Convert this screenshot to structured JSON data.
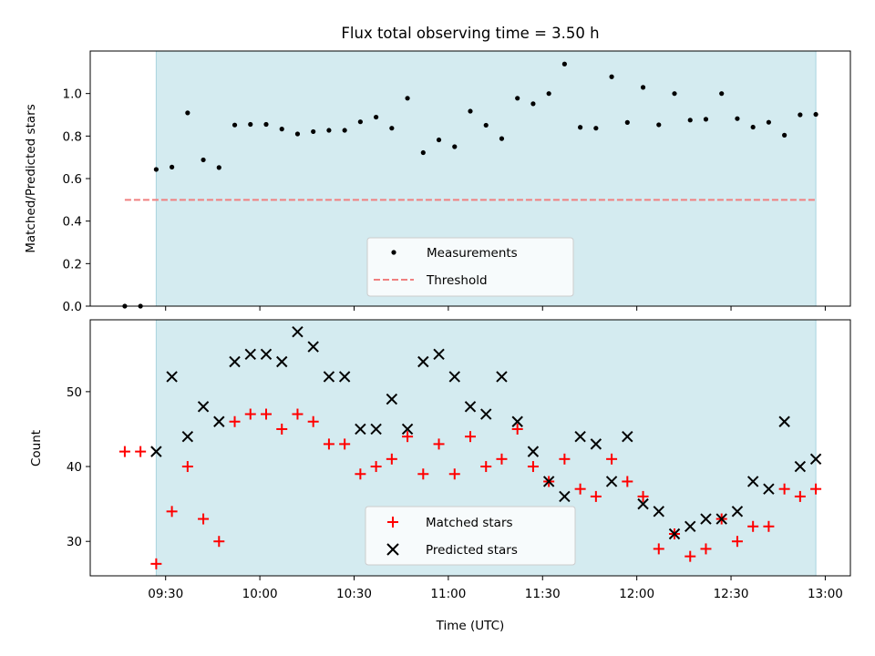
{
  "chart_data": [
    {
      "type": "scatter",
      "title": "Flux total observing time = 3.50 h",
      "ylabel": "Matched/Predicted stars",
      "xlabel": "",
      "xlim": [
        "09:06",
        "13:08"
      ],
      "ylim": [
        0,
        1.2
      ],
      "yticks": [
        0.0,
        0.2,
        0.4,
        0.6,
        0.8,
        1.0
      ],
      "ytick_labels": [
        "0.0",
        "0.2",
        "0.4",
        "0.6",
        "0.8",
        "1.0"
      ],
      "shaded_span": [
        "09:27",
        "12:57"
      ],
      "shade_color": "#d4ebf0",
      "threshold": {
        "value": 0.5,
        "x": [
          "09:17",
          "12:57"
        ],
        "color": "#f08080"
      },
      "legend": {
        "placement": "lower-center",
        "entries": [
          "Measurements",
          "Threshold"
        ]
      },
      "series": [
        {
          "name": "Measurements",
          "marker": "dot",
          "color": "#000000",
          "x": [
            "09:17",
            "09:22",
            "09:27",
            "09:32",
            "09:37",
            "09:42",
            "09:47",
            "09:52",
            "09:57",
            "10:02",
            "10:07",
            "10:12",
            "10:17",
            "10:22",
            "10:27",
            "10:32",
            "10:37",
            "10:42",
            "10:47",
            "10:52",
            "10:57",
            "11:02",
            "11:07",
            "11:12",
            "11:17",
            "11:22",
            "11:27",
            "11:32",
            "11:37",
            "11:42",
            "11:47",
            "11:52",
            "11:57",
            "12:02",
            "12:07",
            "12:12",
            "12:17",
            "12:22",
            "12:27",
            "12:32",
            "12:37",
            "12:42",
            "12:47",
            "12:52",
            "12:57"
          ],
          "y": [
            0.0,
            0.0,
            0.643,
            0.654,
            0.909,
            0.688,
            0.652,
            0.852,
            0.855,
            0.855,
            0.833,
            0.81,
            0.821,
            0.827,
            0.827,
            0.867,
            0.889,
            0.837,
            0.978,
            0.722,
            0.782,
            0.75,
            0.917,
            0.851,
            0.788,
            0.978,
            0.952,
            1.0,
            1.139,
            0.841,
            0.837,
            1.079,
            0.864,
            1.029,
            0.853,
            1.0,
            0.875,
            0.879,
            1.0,
            0.882,
            0.842,
            0.865,
            0.804,
            0.9,
            0.902
          ]
        }
      ]
    },
    {
      "type": "scatter",
      "title": "",
      "xlabel": "Time (UTC)",
      "ylabel": "Count",
      "xlim": [
        "09:06",
        "13:08"
      ],
      "ylim": [
        25.4,
        59.6
      ],
      "yticks": [
        30,
        40,
        50
      ],
      "ytick_labels": [
        "30",
        "40",
        "50"
      ],
      "xticks": [
        "09:30",
        "10:00",
        "10:30",
        "11:00",
        "11:30",
        "12:00",
        "12:30",
        "13:00"
      ],
      "xtick_labels": [
        "09:30",
        "10:00",
        "10:30",
        "11:00",
        "11:30",
        "12:00",
        "12:30",
        "13:00"
      ],
      "shaded_span": [
        "09:27",
        "12:57"
      ],
      "shade_color": "#d4ebf0",
      "legend": {
        "placement": "lower-center",
        "entries": [
          "Matched stars",
          "Predicted stars"
        ]
      },
      "series": [
        {
          "name": "Matched stars",
          "marker": "plus",
          "color": "#ff0000",
          "x": [
            "09:17",
            "09:22",
            "09:27",
            "09:32",
            "09:37",
            "09:42",
            "09:47",
            "09:52",
            "09:57",
            "10:02",
            "10:07",
            "10:12",
            "10:17",
            "10:22",
            "10:27",
            "10:32",
            "10:37",
            "10:42",
            "10:47",
            "10:52",
            "10:57",
            "11:02",
            "11:07",
            "11:12",
            "11:17",
            "11:22",
            "11:27",
            "11:32",
            "11:37",
            "11:42",
            "11:47",
            "11:52",
            "11:57",
            "12:02",
            "12:07",
            "12:12",
            "12:17",
            "12:22",
            "12:27",
            "12:32",
            "12:37",
            "12:42",
            "12:47",
            "12:52",
            "12:57"
          ],
          "y": [
            42,
            42,
            27,
            34,
            40,
            33,
            30,
            46,
            47,
            47,
            45,
            47,
            46,
            43,
            43,
            39,
            40,
            41,
            44,
            39,
            43,
            39,
            44,
            40,
            41,
            45,
            40,
            38,
            41,
            37,
            36,
            41,
            38,
            36,
            29,
            31,
            28,
            29,
            33,
            30,
            32,
            32,
            37,
            36,
            37
          ]
        },
        {
          "name": "Predicted stars",
          "marker": "x",
          "color": "#000000",
          "x": [
            "09:27",
            "09:32",
            "09:37",
            "09:42",
            "09:47",
            "09:52",
            "09:57",
            "10:02",
            "10:07",
            "10:12",
            "10:17",
            "10:22",
            "10:27",
            "10:32",
            "10:37",
            "10:42",
            "10:47",
            "10:52",
            "10:57",
            "11:02",
            "11:07",
            "11:12",
            "11:17",
            "11:22",
            "11:27",
            "11:32",
            "11:37",
            "11:42",
            "11:47",
            "11:52",
            "11:57",
            "12:02",
            "12:07",
            "12:12",
            "12:17",
            "12:22",
            "12:27",
            "12:32",
            "12:37",
            "12:42",
            "12:47",
            "12:52",
            "12:57"
          ],
          "y": [
            42,
            52,
            44,
            48,
            46,
            54,
            55,
            55,
            54,
            58,
            56,
            52,
            52,
            45,
            45,
            49,
            45,
            54,
            55,
            52,
            48,
            47,
            52,
            46,
            42,
            38,
            36,
            44,
            43,
            38,
            44,
            35,
            34,
            31,
            32,
            33,
            33,
            34,
            38,
            37,
            46,
            40,
            41
          ]
        }
      ]
    }
  ]
}
